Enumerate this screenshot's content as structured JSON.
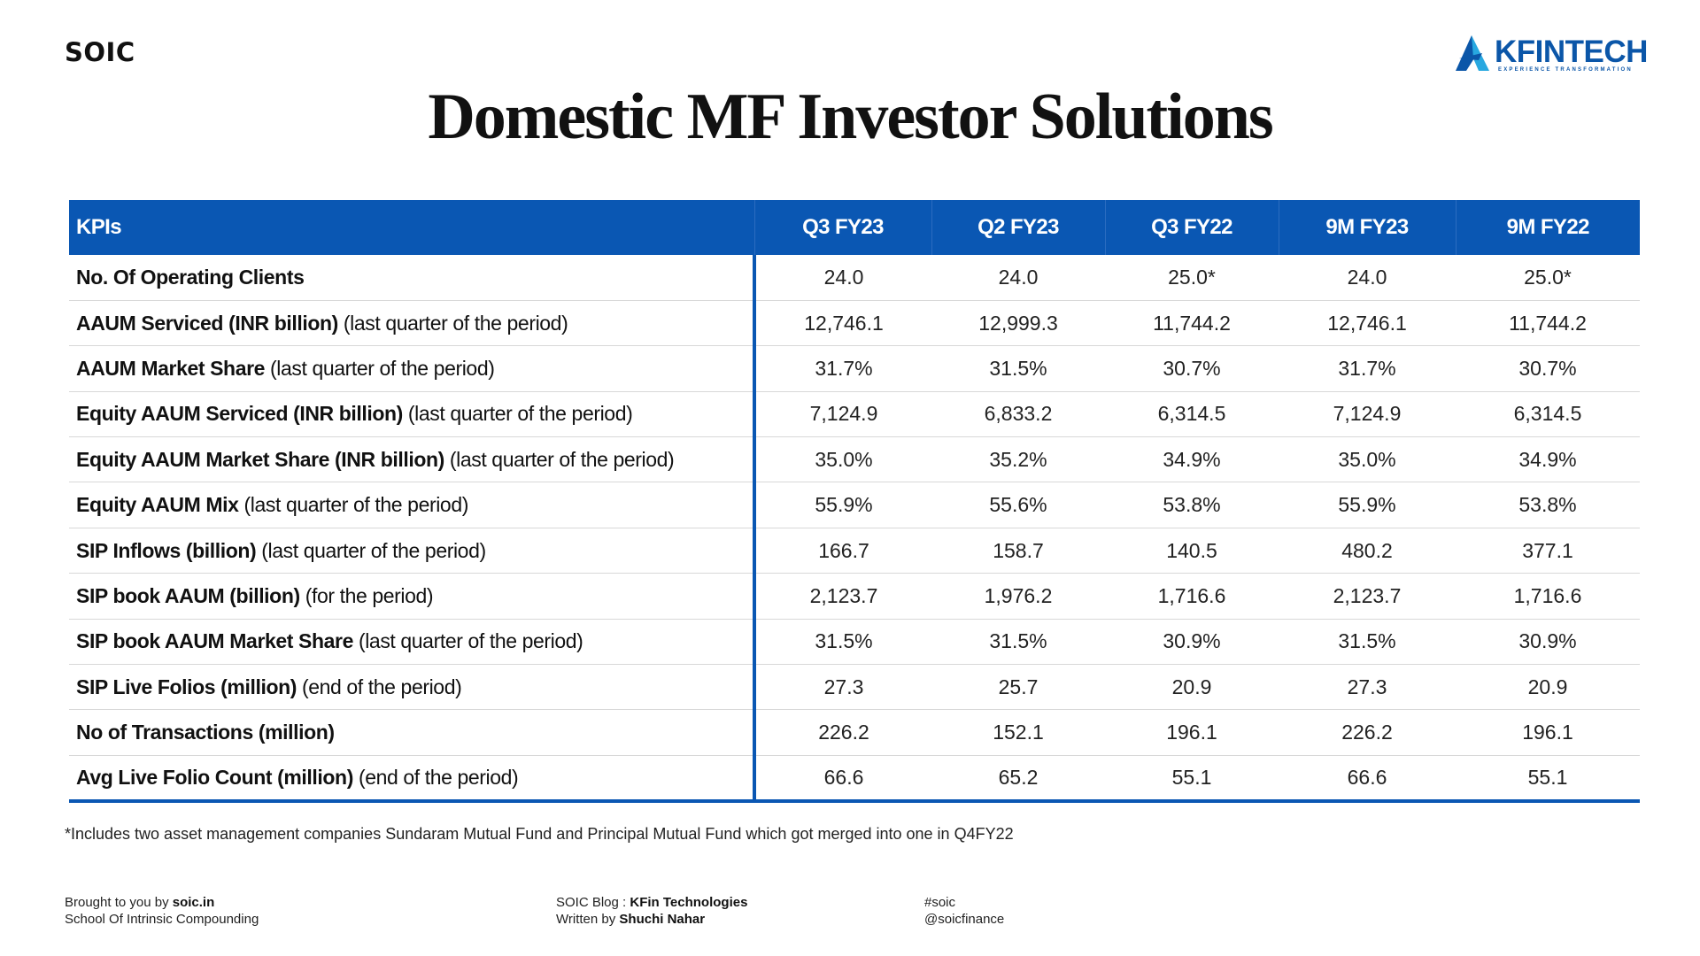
{
  "header": {
    "brand": "SOIC",
    "title": "Domestic MF Investor Solutions",
    "logo": {
      "name": "KFINTECH",
      "tagline": "EXPERIENCE TRANSFORMATION",
      "color": "#0b56a8",
      "accent": "#28a8e0"
    }
  },
  "table": {
    "header_color": "#0a57b3",
    "columns": [
      "KPIs",
      "Q3 FY23",
      "Q2 FY23",
      "Q3 FY22",
      "9M FY23",
      "9M FY22"
    ],
    "rows": [
      {
        "label": "No. Of Operating Clients",
        "note": "",
        "values": [
          "24.0",
          "24.0",
          "25.0*",
          "24.0",
          "25.0*"
        ]
      },
      {
        "label": "AAUM Serviced (INR billion)",
        "note": "  (last quarter of the period)",
        "values": [
          "12,746.1",
          "12,999.3",
          "11,744.2",
          "12,746.1",
          "11,744.2"
        ]
      },
      {
        "label": "AAUM Market Share",
        "note": " (last quarter of the period)",
        "values": [
          "31.7%",
          "31.5%",
          "30.7%",
          "31.7%",
          "30.7%"
        ]
      },
      {
        "label": "Equity AAUM Serviced (INR billion)",
        "note": "  (last quarter of the period)",
        "values": [
          "7,124.9",
          "6,833.2",
          "6,314.5",
          "7,124.9",
          "6,314.5"
        ]
      },
      {
        "label": "Equity AAUM Market Share (INR billion)",
        "note": "  (last quarter of the period)",
        "values": [
          "35.0%",
          "35.2%",
          "34.9%",
          "35.0%",
          "34.9%"
        ]
      },
      {
        "label": "Equity AAUM Mix",
        "note": " (last quarter of the period)",
        "values": [
          "55.9%",
          "55.6%",
          "53.8%",
          "55.9%",
          "53.8%"
        ]
      },
      {
        "label": "SIP Inflows (billion)",
        "note": " (last quarter of the period)",
        "values": [
          "166.7",
          "158.7",
          "140.5",
          "480.2",
          "377.1"
        ]
      },
      {
        "label": "SIP book AAUM (billion)",
        "note": " (for the period)",
        "values": [
          "2,123.7",
          "1,976.2",
          "1,716.6",
          "2,123.7",
          "1,716.6"
        ]
      },
      {
        "label": "SIP book AAUM Market Share",
        "note": " (last quarter of the period)",
        "values": [
          "31.5%",
          "31.5%",
          "30.9%",
          "31.5%",
          "30.9%"
        ]
      },
      {
        "label": "SIP Live Folios (million)",
        "note": " (end of the period)",
        "values": [
          "27.3",
          "25.7",
          "20.9",
          "27.3",
          "20.9"
        ]
      },
      {
        "label": "No of Transactions (million)",
        "note": "",
        "values": [
          "226.2",
          "152.1",
          "196.1",
          "226.2",
          "196.1"
        ]
      },
      {
        "label": "Avg Live Folio Count (million)",
        "note": " (end of the period)",
        "values": [
          "66.6",
          "65.2",
          "55.1",
          "66.6",
          "55.1"
        ]
      }
    ]
  },
  "footnote": "*Includes two asset management companies Sundaram Mutual Fund and Principal Mutual Fund which got merged into one in Q4FY22",
  "footer": {
    "left": {
      "prefix": "Brought to you by ",
      "site": "soic.in",
      "line2": "School Of Intrinsic Compounding"
    },
    "center": {
      "prefix": "SOIC Blog : ",
      "company": "KFin Technologies",
      "written_prefix": "Written by ",
      "author": "Shuchi Nahar"
    },
    "right": {
      "hashtag": "#soic",
      "handle": "@soicfinance"
    }
  }
}
